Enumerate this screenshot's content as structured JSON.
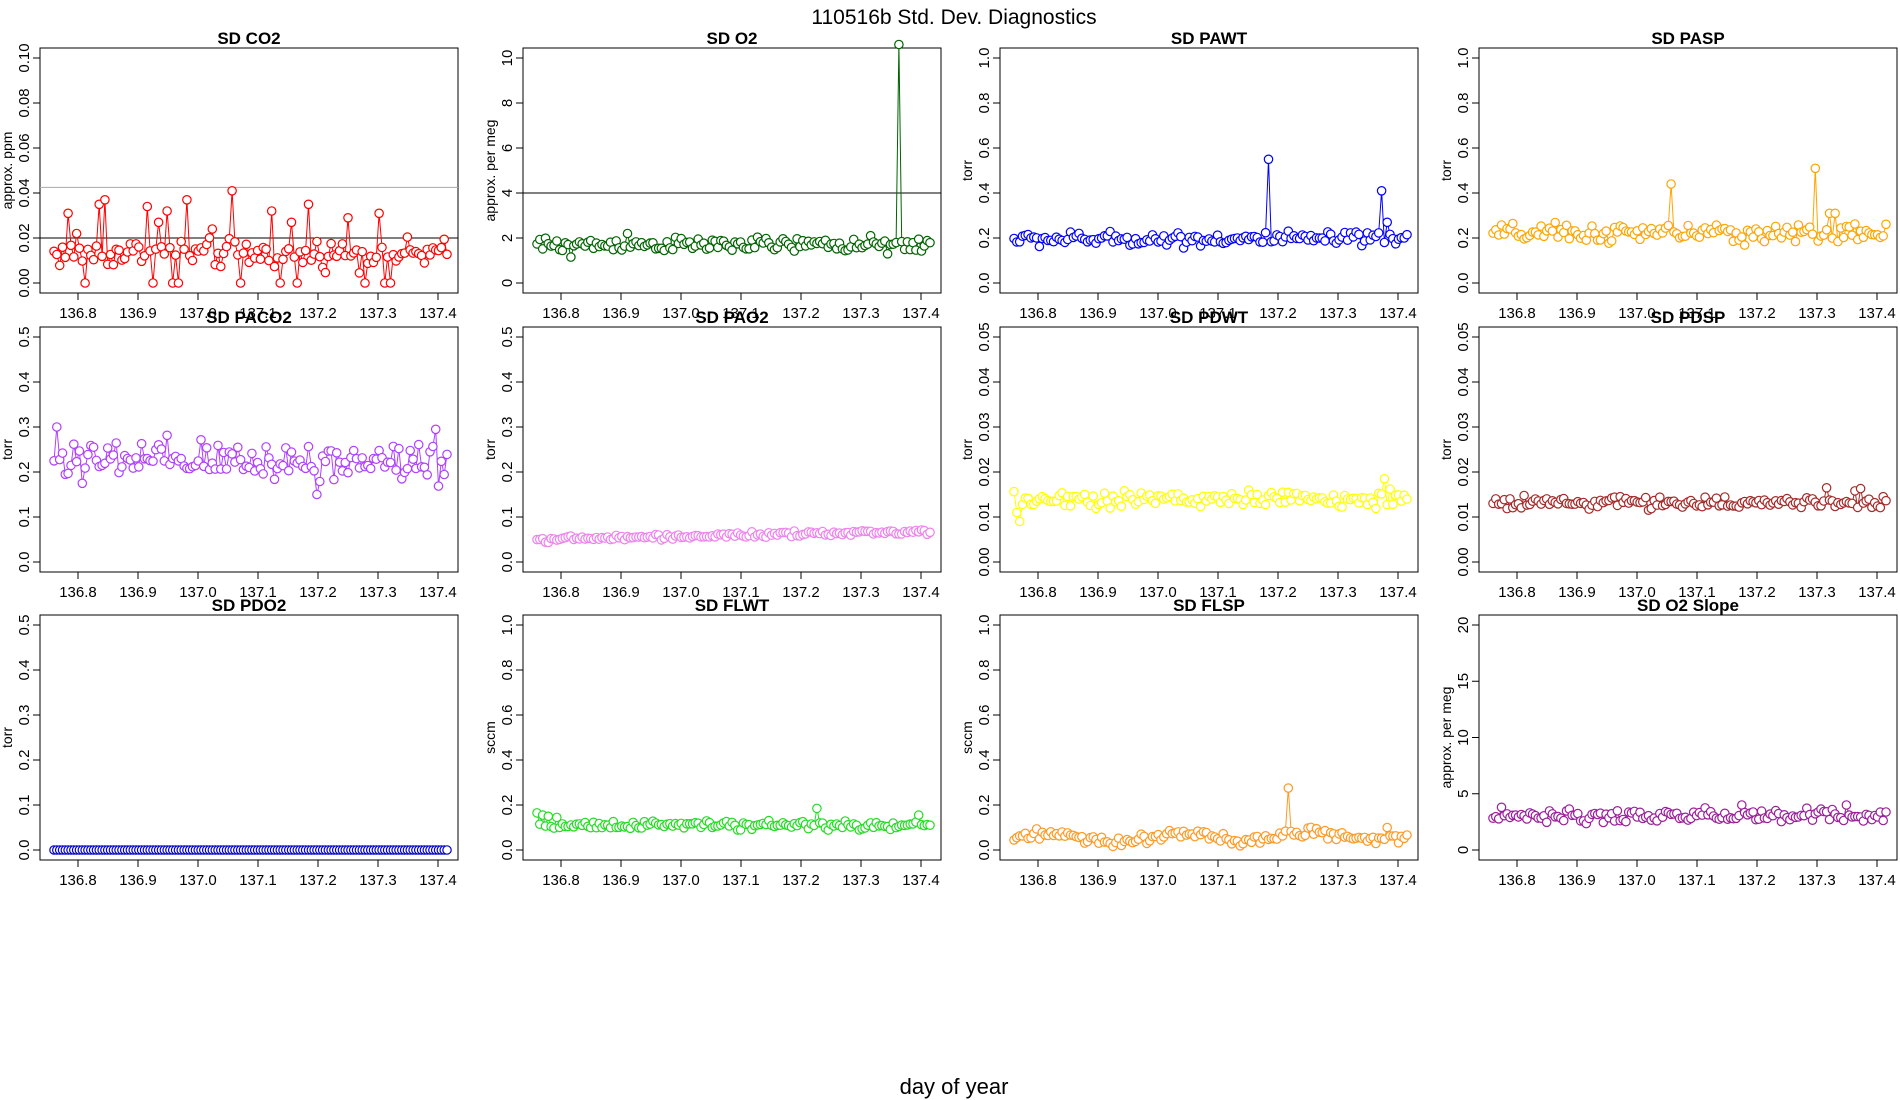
{
  "figure": {
    "title": "110516b   Std. Dev. Diagnostics",
    "xlabel": "day of year"
  },
  "chart_data": [
    {
      "type": "scatter",
      "title": "SD CO2",
      "ylabel": "approx. ppm",
      "color": "#ff0000",
      "xlim": [
        136.75,
        137.42
      ],
      "ylim": [
        0,
        0.1
      ],
      "yticks": [
        0,
        0.02,
        0.04,
        0.06,
        0.08,
        0.1
      ],
      "ytick_labels": [
        "0.00",
        "0.02",
        "0.04",
        "0.06",
        "0.08",
        "0.10"
      ],
      "xticks": [
        136.8,
        136.9,
        137.0,
        137.1,
        137.2,
        137.3,
        137.4
      ],
      "xtick_labels": [
        "136.8",
        "136.9",
        "137.0",
        "137.1",
        "137.2",
        "137.3",
        "137.4"
      ],
      "hlines": [
        {
          "y": 0.02,
          "color": "#000000"
        },
        {
          "y": 0.0425,
          "color": "#aaaaaa"
        }
      ],
      "n": 140,
      "base": 0.013,
      "noise": 0.0045,
      "spikes": [
        [
          5,
          0.031
        ],
        [
          8,
          0.022
        ],
        [
          11,
          0.0
        ],
        [
          16,
          0.035
        ],
        [
          18,
          0.037
        ],
        [
          22,
          0.015
        ],
        [
          30,
          0.016
        ],
        [
          33,
          0.034
        ],
        [
          35,
          0.0
        ],
        [
          37,
          0.027
        ],
        [
          40,
          0.032
        ],
        [
          42,
          0.0
        ],
        [
          44,
          0.0
        ],
        [
          47,
          0.037
        ],
        [
          56,
          0.024
        ],
        [
          63,
          0.041
        ],
        [
          66,
          0.0
        ],
        [
          77,
          0.032
        ],
        [
          80,
          0.0
        ],
        [
          84,
          0.027
        ],
        [
          86,
          0.0
        ],
        [
          90,
          0.035
        ],
        [
          104,
          0.029
        ],
        [
          110,
          0.0
        ],
        [
          115,
          0.031
        ],
        [
          117,
          0.0
        ],
        [
          119,
          0.0
        ]
      ]
    },
    {
      "type": "scatter",
      "title": "SD O2",
      "ylabel": "approx. per meg",
      "color": "#006400",
      "xlim": [
        136.75,
        137.42
      ],
      "ylim": [
        0,
        10
      ],
      "yticks": [
        0,
        2,
        4,
        6,
        8,
        10
      ],
      "ytick_labels": [
        "0",
        "2",
        "4",
        "6",
        "8",
        "10"
      ],
      "xticks": [
        136.8,
        136.9,
        137.0,
        137.1,
        137.2,
        137.3,
        137.4
      ],
      "xtick_labels": [
        "136.8",
        "136.9",
        "137.0",
        "137.1",
        "137.2",
        "137.3",
        "137.4"
      ],
      "hlines": [
        {
          "y": 4,
          "color": "#000000"
        }
      ],
      "n": 140,
      "base": 1.7,
      "noise": 0.22,
      "spikes": [
        [
          12,
          1.15
        ],
        [
          32,
          2.2
        ],
        [
          128,
          10.6
        ],
        [
          124,
          1.3
        ]
      ]
    },
    {
      "type": "scatter",
      "title": "SD PAWT",
      "ylabel": "torr",
      "color": "#0000ff",
      "xlim": [
        136.75,
        137.42
      ],
      "ylim": [
        0,
        1
      ],
      "yticks": [
        0,
        0.2,
        0.4,
        0.6,
        0.8,
        1
      ],
      "ytick_labels": [
        "0.0",
        "0.2",
        "0.4",
        "0.6",
        "0.8",
        "1.0"
      ],
      "xticks": [
        136.8,
        136.9,
        137.0,
        137.1,
        137.2,
        137.3,
        137.4
      ],
      "xtick_labels": [
        "136.8",
        "136.9",
        "137.0",
        "137.1",
        "137.2",
        "137.3",
        "137.4"
      ],
      "hlines": [],
      "n": 140,
      "base": 0.195,
      "noise": 0.022,
      "spikes": [
        [
          90,
          0.55
        ],
        [
          130,
          0.41
        ],
        [
          132,
          0.27
        ]
      ]
    },
    {
      "type": "scatter",
      "title": "SD PASP",
      "ylabel": "torr",
      "color": "#ffa500",
      "xlim": [
        136.75,
        137.42
      ],
      "ylim": [
        0,
        1
      ],
      "yticks": [
        0,
        0.2,
        0.4,
        0.6,
        0.8,
        1
      ],
      "ytick_labels": [
        "0.0",
        "0.2",
        "0.4",
        "0.6",
        "0.8",
        "1.0"
      ],
      "xticks": [
        136.8,
        136.9,
        137.0,
        137.1,
        137.2,
        137.3,
        137.4
      ],
      "xtick_labels": [
        "136.8",
        "136.9",
        "137.0",
        "137.1",
        "137.2",
        "137.3",
        "137.4"
      ],
      "hlines": [],
      "n": 140,
      "base": 0.22,
      "noise": 0.03,
      "spikes": [
        [
          63,
          0.44
        ],
        [
          114,
          0.51
        ],
        [
          119,
          0.31
        ],
        [
          121,
          0.31
        ]
      ]
    },
    {
      "type": "scatter",
      "title": "SD PACO2",
      "ylabel": "torr",
      "color": "#b040ff",
      "xlim": [
        136.75,
        137.42
      ],
      "ylim": [
        0,
        0.5
      ],
      "yticks": [
        0,
        0.1,
        0.2,
        0.3,
        0.4,
        0.5
      ],
      "ytick_labels": [
        "0.0",
        "0.1",
        "0.2",
        "0.3",
        "0.4",
        "0.5"
      ],
      "xticks": [
        136.8,
        136.9,
        137.0,
        137.1,
        137.2,
        137.3,
        137.4
      ],
      "xtick_labels": [
        "136.8",
        "136.9",
        "137.0",
        "137.1",
        "137.2",
        "137.3",
        "137.4"
      ],
      "hlines": [],
      "n": 140,
      "base": 0.225,
      "noise": 0.032,
      "spikes": [
        [
          1,
          0.3
        ],
        [
          10,
          0.175
        ],
        [
          93,
          0.15
        ],
        [
          135,
          0.295
        ]
      ]
    },
    {
      "type": "scatter",
      "title": "SD PAO2",
      "ylabel": "torr",
      "color": "#ee82ee",
      "xlim": [
        136.75,
        137.42
      ],
      "ylim": [
        0,
        0.5
      ],
      "yticks": [
        0,
        0.1,
        0.2,
        0.3,
        0.4,
        0.5
      ],
      "ytick_labels": [
        "0.0",
        "0.1",
        "0.2",
        "0.3",
        "0.4",
        "0.5"
      ],
      "xticks": [
        136.8,
        136.9,
        137.0,
        137.1,
        137.2,
        137.3,
        137.4
      ],
      "xtick_labels": [
        "136.8",
        "136.9",
        "137.0",
        "137.1",
        "137.2",
        "137.3",
        "137.4"
      ],
      "hlines": [],
      "n": 140,
      "base": 0.05,
      "trend": 0.018,
      "noise": 0.004,
      "spikes": []
    },
    {
      "type": "scatter",
      "title": "SD PDWT",
      "ylabel": "torr",
      "color": "#ffff00",
      "xlim": [
        136.75,
        137.42
      ],
      "ylim": [
        0,
        0.05
      ],
      "yticks": [
        0,
        0.01,
        0.02,
        0.03,
        0.04,
        0.05
      ],
      "ytick_labels": [
        "0.00",
        "0.01",
        "0.02",
        "0.03",
        "0.04",
        "0.05"
      ],
      "xticks": [
        136.8,
        136.9,
        137.0,
        137.1,
        137.2,
        137.3,
        137.4
      ],
      "xtick_labels": [
        "136.8",
        "136.9",
        "137.0",
        "137.1",
        "137.2",
        "137.3",
        "137.4"
      ],
      "hlines": [],
      "n": 140,
      "base": 0.014,
      "noise": 0.0013,
      "spikes": [
        [
          2,
          0.009
        ],
        [
          1,
          0.011
        ],
        [
          131,
          0.0185
        ]
      ]
    },
    {
      "type": "scatter",
      "title": "SD PDSP",
      "ylabel": "torr",
      "color": "#a52a2a",
      "xlim": [
        136.75,
        137.42
      ],
      "ylim": [
        0,
        0.05
      ],
      "yticks": [
        0,
        0.01,
        0.02,
        0.03,
        0.04,
        0.05
      ],
      "ytick_labels": [
        "0.00",
        "0.01",
        "0.02",
        "0.03",
        "0.04",
        "0.05"
      ],
      "xticks": [
        136.8,
        136.9,
        137.0,
        137.1,
        137.2,
        137.3,
        137.4
      ],
      "xtick_labels": [
        "136.8",
        "136.9",
        "137.0",
        "137.1",
        "137.2",
        "137.3",
        "137.4"
      ],
      "hlines": [],
      "n": 140,
      "base": 0.0132,
      "noise": 0.0009,
      "spikes": [
        [
          118,
          0.0165
        ],
        [
          130,
          0.0163
        ],
        [
          128,
          0.0158
        ]
      ]
    },
    {
      "type": "scatter",
      "title": "SD PDO2",
      "ylabel": "torr",
      "color": "#0000cd",
      "xlim": [
        136.75,
        137.42
      ],
      "ylim": [
        0,
        0.5
      ],
      "yticks": [
        0,
        0.1,
        0.2,
        0.3,
        0.4,
        0.5
      ],
      "ytick_labels": [
        "0.0",
        "0.1",
        "0.2",
        "0.3",
        "0.4",
        "0.5"
      ],
      "xticks": [
        136.8,
        136.9,
        137.0,
        137.1,
        137.2,
        137.3,
        137.4
      ],
      "xtick_labels": [
        "136.8",
        "136.9",
        "137.0",
        "137.1",
        "137.2",
        "137.3",
        "137.4"
      ],
      "hlines": [],
      "n": 140,
      "base": 0.0,
      "noise": 0.0,
      "spikes": []
    },
    {
      "type": "scatter",
      "title": "SD FLWT",
      "ylabel": "sccm",
      "color": "#22dd22",
      "xlim": [
        136.75,
        137.42
      ],
      "ylim": [
        0,
        1
      ],
      "yticks": [
        0,
        0.2,
        0.4,
        0.6,
        0.8,
        1
      ],
      "ytick_labels": [
        "0.0",
        "0.2",
        "0.4",
        "0.6",
        "0.8",
        "1.0"
      ],
      "xticks": [
        136.8,
        136.9,
        137.0,
        137.1,
        137.2,
        137.3,
        137.4
      ],
      "xtick_labels": [
        "136.8",
        "136.9",
        "137.0",
        "137.1",
        "137.2",
        "137.3",
        "137.4"
      ],
      "hlines": [],
      "n": 140,
      "base": 0.11,
      "noise": 0.012,
      "spikes": [
        [
          0,
          0.165
        ],
        [
          2,
          0.155
        ],
        [
          4,
          0.15
        ],
        [
          7,
          0.145
        ],
        [
          99,
          0.185
        ],
        [
          135,
          0.155
        ]
      ]
    },
    {
      "type": "scatter",
      "title": "SD FLSP",
      "ylabel": "sccm",
      "color": "#ff9922",
      "xlim": [
        136.75,
        137.42
      ],
      "ylim": [
        0,
        1
      ],
      "yticks": [
        0,
        0.2,
        0.4,
        0.6,
        0.8,
        1
      ],
      "ytick_labels": [
        "0.0",
        "0.2",
        "0.4",
        "0.6",
        "0.8",
        "1.0"
      ],
      "xticks": [
        136.8,
        136.9,
        137.0,
        137.1,
        137.2,
        137.3,
        137.4
      ],
      "xtick_labels": [
        "136.8",
        "136.9",
        "137.0",
        "137.1",
        "137.2",
        "137.3",
        "137.4"
      ],
      "hlines": [],
      "n": 140,
      "base": 0.05,
      "noise": 0.015,
      "wave": 0.03,
      "spikes": [
        [
          97,
          0.275
        ],
        [
          132,
          0.1
        ]
      ]
    },
    {
      "type": "scatter",
      "title": "SD O2 Slope",
      "ylabel": "approx. per meg",
      "color": "#9b1f9b",
      "xlim": [
        136.75,
        137.42
      ],
      "ylim": [
        0,
        20
      ],
      "yticks": [
        0,
        5,
        10,
        15,
        20
      ],
      "ytick_labels": [
        "0",
        "5",
        "10",
        "15",
        "20"
      ],
      "xticks": [
        136.8,
        136.9,
        137.0,
        137.1,
        137.2,
        137.3,
        137.4
      ],
      "xtick_labels": [
        "136.8",
        "136.9",
        "137.0",
        "137.1",
        "137.2",
        "137.3",
        "137.4"
      ],
      "hlines": [],
      "n": 140,
      "base": 3.0,
      "noise": 0.4,
      "spikes": [
        [
          3,
          3.8
        ],
        [
          88,
          4.0
        ],
        [
          125,
          4.0
        ]
      ]
    }
  ]
}
